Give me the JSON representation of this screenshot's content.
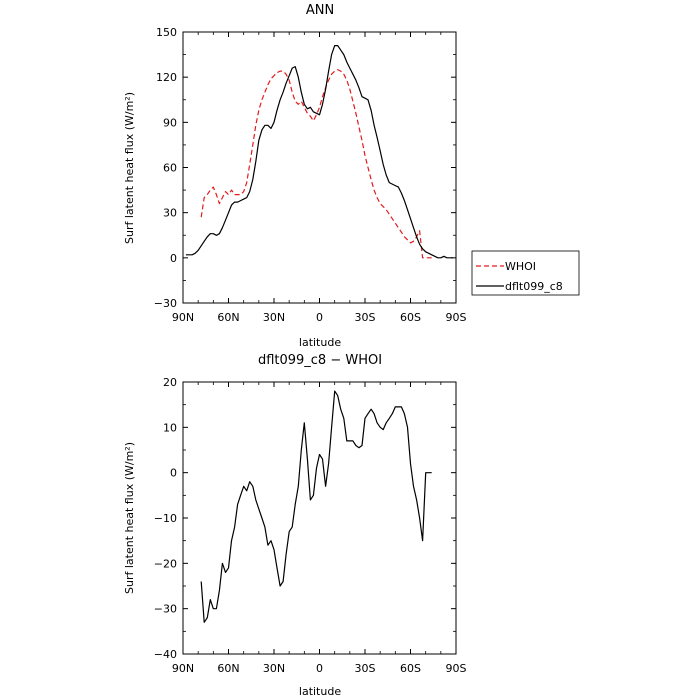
{
  "chart_data": [
    {
      "type": "line",
      "title": "ANN",
      "xlabel": "latitude",
      "ylabel": "Surf latent heat flux (W/m²)",
      "xlim": [
        90,
        -90
      ],
      "ylim": [
        -30,
        150
      ],
      "x_ticks": [
        90,
        60,
        30,
        0,
        -30,
        -60,
        -90
      ],
      "x_tick_labels": [
        "90N",
        "60N",
        "30N",
        "0",
        "30S",
        "60S",
        "90S"
      ],
      "y_ticks": [
        -30,
        0,
        30,
        60,
        90,
        120,
        150
      ],
      "y_tick_labels": [
        "−30",
        "0",
        "30",
        "60",
        "90",
        "120",
        "150"
      ],
      "legend_position": "right-bottom",
      "series": [
        {
          "name": "WHOI",
          "color": "#e41a1c",
          "dash": true,
          "x": [
            78,
            76,
            74,
            72,
            70,
            68,
            66,
            64,
            62,
            60,
            58,
            56,
            54,
            52,
            50,
            48,
            46,
            44,
            42,
            40,
            38,
            36,
            34,
            32,
            30,
            28,
            26,
            24,
            22,
            20,
            18,
            16,
            14,
            12,
            10,
            8,
            6,
            4,
            2,
            0,
            -2,
            -4,
            -6,
            -8,
            -10,
            -12,
            -14,
            -16,
            -18,
            -20,
            -22,
            -24,
            -26,
            -28,
            -30,
            -32,
            -34,
            -36,
            -38,
            -40,
            -42,
            -44,
            -46,
            -48,
            -50,
            -52,
            -54,
            -56,
            -58,
            -60,
            -62,
            -64,
            -66,
            -68,
            -70,
            -72,
            -74,
            -76
          ],
          "values": [
            27,
            40,
            42,
            45,
            47,
            42,
            36,
            40,
            44,
            42,
            45,
            42,
            42,
            42,
            44,
            50,
            62,
            75,
            88,
            98,
            105,
            110,
            115,
            119,
            121,
            123,
            124,
            124,
            122,
            118,
            110,
            104,
            102,
            104,
            100,
            96,
            94,
            91,
            95,
            100,
            107,
            113,
            118,
            122,
            124,
            125,
            124,
            122,
            118,
            112,
            104,
            96,
            87,
            78,
            68,
            60,
            52,
            45,
            40,
            36,
            34,
            32,
            29,
            26,
            23,
            20,
            17,
            14,
            12,
            10,
            11,
            14,
            18,
            0,
            0,
            0,
            0,
            0
          ]
        },
        {
          "name": "dflt099_c8",
          "color": "#000000",
          "dash": false,
          "x": [
            88,
            86,
            84,
            82,
            80,
            78,
            76,
            74,
            72,
            70,
            68,
            66,
            64,
            62,
            60,
            58,
            56,
            54,
            52,
            50,
            48,
            46,
            44,
            42,
            40,
            38,
            36,
            34,
            32,
            30,
            28,
            26,
            24,
            22,
            20,
            18,
            16,
            14,
            12,
            10,
            8,
            6,
            4,
            2,
            0,
            -2,
            -4,
            -6,
            -8,
            -10,
            -12,
            -14,
            -16,
            -18,
            -20,
            -22,
            -24,
            -26,
            -28,
            -30,
            -32,
            -34,
            -36,
            -38,
            -40,
            -42,
            -44,
            -46,
            -48,
            -50,
            -52,
            -54,
            -56,
            -58,
            -60,
            -62,
            -64,
            -66,
            -68,
            -70,
            -72,
            -74,
            -76,
            -78,
            -80,
            -82,
            -84,
            -86,
            -88
          ],
          "values": [
            2,
            2,
            2,
            3,
            5,
            8,
            11,
            14,
            16,
            16,
            15,
            16,
            20,
            25,
            30,
            35,
            37,
            37,
            38,
            39,
            40,
            44,
            52,
            64,
            78,
            85,
            88,
            88,
            86,
            90,
            98,
            105,
            110,
            116,
            121,
            126,
            127,
            120,
            110,
            102,
            99,
            100,
            97,
            96,
            95,
            102,
            112,
            124,
            135,
            141,
            141,
            138,
            135,
            130,
            126,
            122,
            118,
            113,
            107,
            106,
            105,
            98,
            88,
            80,
            71,
            62,
            55,
            50,
            49,
            48,
            47,
            43,
            38,
            32,
            26,
            20,
            14,
            9,
            6,
            4,
            3,
            2,
            1,
            0,
            0,
            1,
            0,
            0,
            0
          ]
        }
      ]
    },
    {
      "type": "line",
      "title": "dflt099_c8 − WHOI",
      "xlabel": "latitude",
      "ylabel": "Surf latent heat flux (W/m²)",
      "xlim": [
        90,
        -90
      ],
      "ylim": [
        -40,
        20
      ],
      "x_ticks": [
        90,
        60,
        30,
        0,
        -30,
        -60,
        -90
      ],
      "x_tick_labels": [
        "90N",
        "60N",
        "30N",
        "0",
        "30S",
        "60S",
        "90S"
      ],
      "y_ticks": [
        -40,
        -30,
        -20,
        -10,
        0,
        10,
        20
      ],
      "y_tick_labels": [
        "−40",
        "−30",
        "−20",
        "−10",
        "0",
        "10",
        "20"
      ],
      "series": [
        {
          "color": "#000000",
          "dash": false,
          "x": [
            78,
            76,
            74,
            72,
            70,
            68,
            66,
            64,
            62,
            60,
            58,
            56,
            54,
            52,
            50,
            48,
            46,
            44,
            42,
            40,
            38,
            36,
            34,
            32,
            30,
            28,
            26,
            24,
            22,
            20,
            18,
            16,
            14,
            12,
            10,
            8,
            6,
            4,
            2,
            0,
            -2,
            -4,
            -6,
            -8,
            -10,
            -12,
            -14,
            -16,
            -18,
            -20,
            -22,
            -24,
            -26,
            -28,
            -30,
            -32,
            -34,
            -36,
            -38,
            -40,
            -42,
            -44,
            -46,
            -48,
            -50,
            -52,
            -54,
            -56,
            -58,
            -60,
            -62,
            -64,
            -66,
            -68,
            -70,
            -72,
            -74,
            -76
          ],
          "values": [
            -24,
            -33,
            -32,
            -28,
            -30,
            -30,
            -26,
            -20,
            -22,
            -21,
            -15,
            -12,
            -7,
            -5,
            -3,
            -4,
            -2,
            -3,
            -6,
            -8,
            -10,
            -12,
            -16,
            -15,
            -17,
            -21,
            -25,
            -24,
            -18,
            -13,
            -12,
            -7,
            -3,
            5,
            11,
            3,
            -6,
            -5,
            1,
            4,
            3,
            -3,
            2,
            10,
            18,
            17,
            14,
            12,
            7,
            7,
            7,
            6,
            5.5,
            6,
            12,
            13,
            14,
            13,
            11,
            10,
            9.5,
            11,
            12,
            13,
            14.5,
            14.5,
            14.5,
            13,
            10,
            2,
            -3,
            -6,
            -10,
            -15,
            0,
            0,
            0,
            0
          ]
        }
      ]
    }
  ]
}
